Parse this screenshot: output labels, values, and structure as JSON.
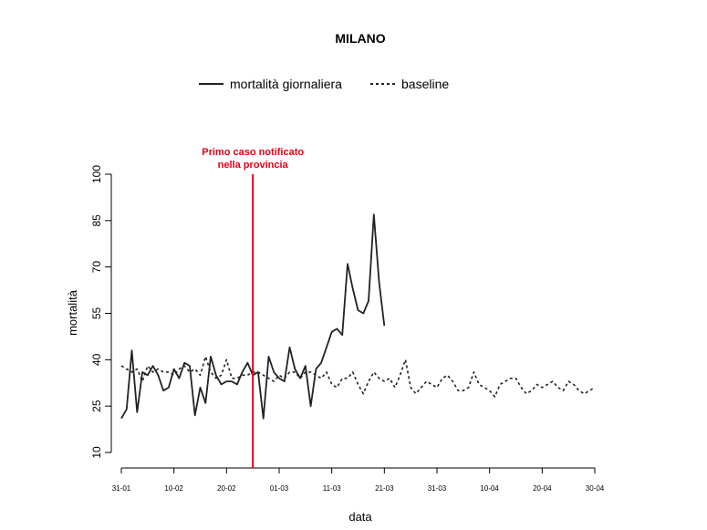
{
  "chart_data": {
    "type": "line",
    "title": "MILANO",
    "xlabel": "data",
    "ylabel": "mortalità",
    "ylim": [
      10,
      100
    ],
    "yticks": [
      10,
      25,
      40,
      55,
      70,
      85,
      100
    ],
    "xlim": [
      "2020-01-31",
      "2020-04-30"
    ],
    "xticks": [
      {
        "date": "2020-01-31",
        "label": "31-01"
      },
      {
        "date": "2020-02-10",
        "label": "10-02"
      },
      {
        "date": "2020-02-20",
        "label": "20-02"
      },
      {
        "date": "2020-03-01",
        "label": "01-03"
      },
      {
        "date": "2020-03-11",
        "label": "11-03"
      },
      {
        "date": "2020-03-21",
        "label": "21-03"
      },
      {
        "date": "2020-03-31",
        "label": "31-03"
      },
      {
        "date": "2020-04-10",
        "label": "10-04"
      },
      {
        "date": "2020-04-20",
        "label": "20-04"
      },
      {
        "date": "2020-04-30",
        "label": "30-04"
      }
    ],
    "legend_position": "top-center",
    "grid": false,
    "annotation": {
      "date": "2020-02-25",
      "text_lines": [
        "Primo caso notificato",
        "nella provincia"
      ],
      "color": "#e3001b"
    },
    "series": [
      {
        "name": "mortalità giornaliera",
        "style": "solid",
        "color": "#222222",
        "x_start": "2020-01-31",
        "values": [
          21,
          24,
          43,
          23,
          36,
          35,
          38,
          35,
          30,
          31,
          37,
          34,
          39,
          38,
          22,
          31,
          26,
          41,
          35,
          32,
          33,
          33,
          32,
          36,
          39,
          35,
          36,
          21,
          41,
          36,
          34,
          33,
          44,
          37,
          34,
          38,
          25,
          37,
          39,
          44,
          49,
          50,
          48,
          71,
          63,
          56,
          55,
          59,
          87,
          65,
          51
        ]
      },
      {
        "name": "baseline",
        "style": "dashed",
        "color": "#222222",
        "x_start": "2020-01-31",
        "values": [
          38,
          37,
          36,
          37,
          33,
          38,
          36,
          37,
          36,
          36,
          35,
          37,
          38,
          36,
          37,
          35,
          41,
          36,
          34,
          35,
          40,
          34,
          34,
          35,
          35,
          36,
          36,
          35,
          34,
          33,
          35,
          34,
          36,
          36,
          34,
          36,
          36,
          35,
          34,
          36,
          32,
          31,
          34,
          34,
          36,
          32,
          29,
          33,
          36,
          34,
          33,
          34,
          31,
          35,
          40,
          31,
          29,
          31,
          33,
          32,
          31,
          34,
          35,
          33,
          30,
          30,
          31,
          36,
          32,
          31,
          30,
          28,
          32,
          33,
          34,
          34,
          31,
          29,
          30,
          32,
          31,
          32,
          33,
          31,
          30,
          33,
          32,
          30,
          29,
          30,
          31
        ]
      }
    ]
  }
}
